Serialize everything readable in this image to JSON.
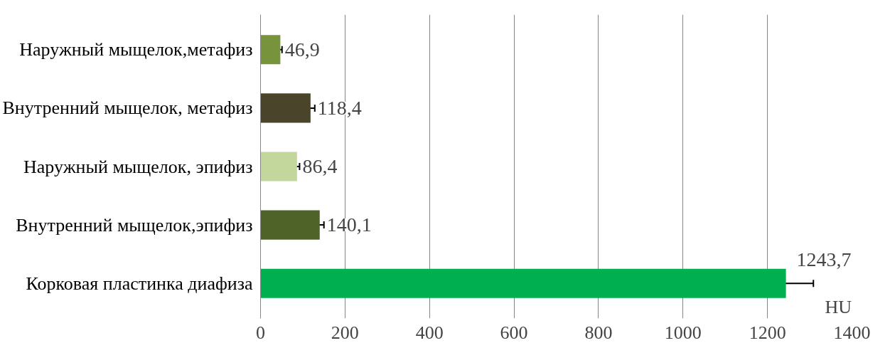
{
  "chart_data": {
    "type": "bar",
    "orientation": "horizontal",
    "categories": [
      "Наружный мыщелок,метафиз",
      "Внутренний мыщелок, метафиз",
      "Наружный мыщелок, эпифиз",
      "Внутренний мыщелок,эпифиз",
      "Корковая пластинка диафиза"
    ],
    "values": [
      46.9,
      118.4,
      86.4,
      140.1,
      1243.7
    ],
    "colors": [
      "#77933c",
      "#4a452a",
      "#c3d69b",
      "#4f6228",
      "#00b050"
    ],
    "errors": [
      4,
      10,
      6,
      10,
      65
    ],
    "value_labels": [
      "46,9",
      "118,4",
      "86,4",
      "140,1",
      "1243,7"
    ],
    "xlabel": "HU",
    "xlim": [
      0,
      1400
    ],
    "xticks": [
      0,
      200,
      400,
      600,
      800,
      1000,
      1200,
      1400
    ],
    "grid": "x"
  }
}
